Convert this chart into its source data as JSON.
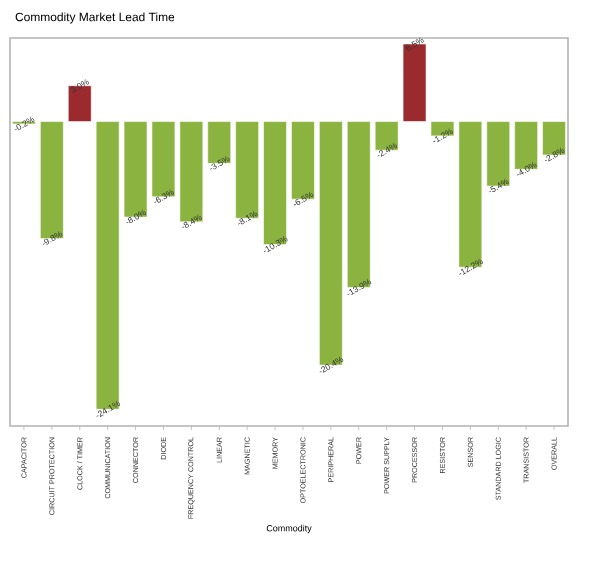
{
  "chart_data": {
    "type": "bar",
    "title": "Commodity Market Lead Time",
    "xlabel": "Commodity",
    "categories": [
      "CAPACITOR",
      "CIRCUIT PROTECTION",
      "CLOCK / TIMER",
      "COMMUNICATION",
      "CONNECTOR",
      "DIODE",
      "FREQUENCY CONTROL",
      "LINEAR",
      "MAGNETIC",
      "MEMORY",
      "OPTOELECTRONIC",
      "PERIPHERAL",
      "POWER",
      "POWER SUPPLY",
      "PROCESSOR",
      "RESISTOR",
      "SENSOR",
      "STANDARD LOGIC",
      "TRANSISTOR",
      "OVERALL"
    ],
    "values": [
      -0.2,
      -9.8,
      3.0,
      -24.1,
      -8.0,
      -6.3,
      -8.4,
      -3.5,
      -8.1,
      -10.3,
      -6.5,
      -20.4,
      -13.9,
      -2.4,
      6.5,
      -1.2,
      -12.2,
      -5.4,
      -4.0,
      -2.8
    ],
    "colors": [
      "#8ab33f",
      "#8ab33f",
      "#9b2a2e",
      "#8ab33f",
      "#8ab33f",
      "#8ab33f",
      "#8ab33f",
      "#8ab33f",
      "#8ab33f",
      "#8ab33f",
      "#8ab33f",
      "#8ab33f",
      "#8ab33f",
      "#8ab33f",
      "#9b2a2e",
      "#8ab33f",
      "#8ab33f",
      "#8ab33f",
      "#8ab33f",
      "#8ab33f"
    ],
    "value_labels": [
      "-0.2%",
      "-9.8%",
      "3.0%",
      "-24.1%",
      "-8.0%",
      "-6.3%",
      "-8.4%",
      "-3.5%",
      "-8.1%",
      "-10.3%",
      "-6.5%",
      "-20.4%",
      "-13.9%",
      "-2.4%",
      "6.5%",
      "-1.2%",
      "-12.2%",
      "-5.4%",
      "-4.0%",
      "-2.8%"
    ],
    "ylim": [
      -25.5,
      7
    ],
    "tick_labels": "x"
  }
}
